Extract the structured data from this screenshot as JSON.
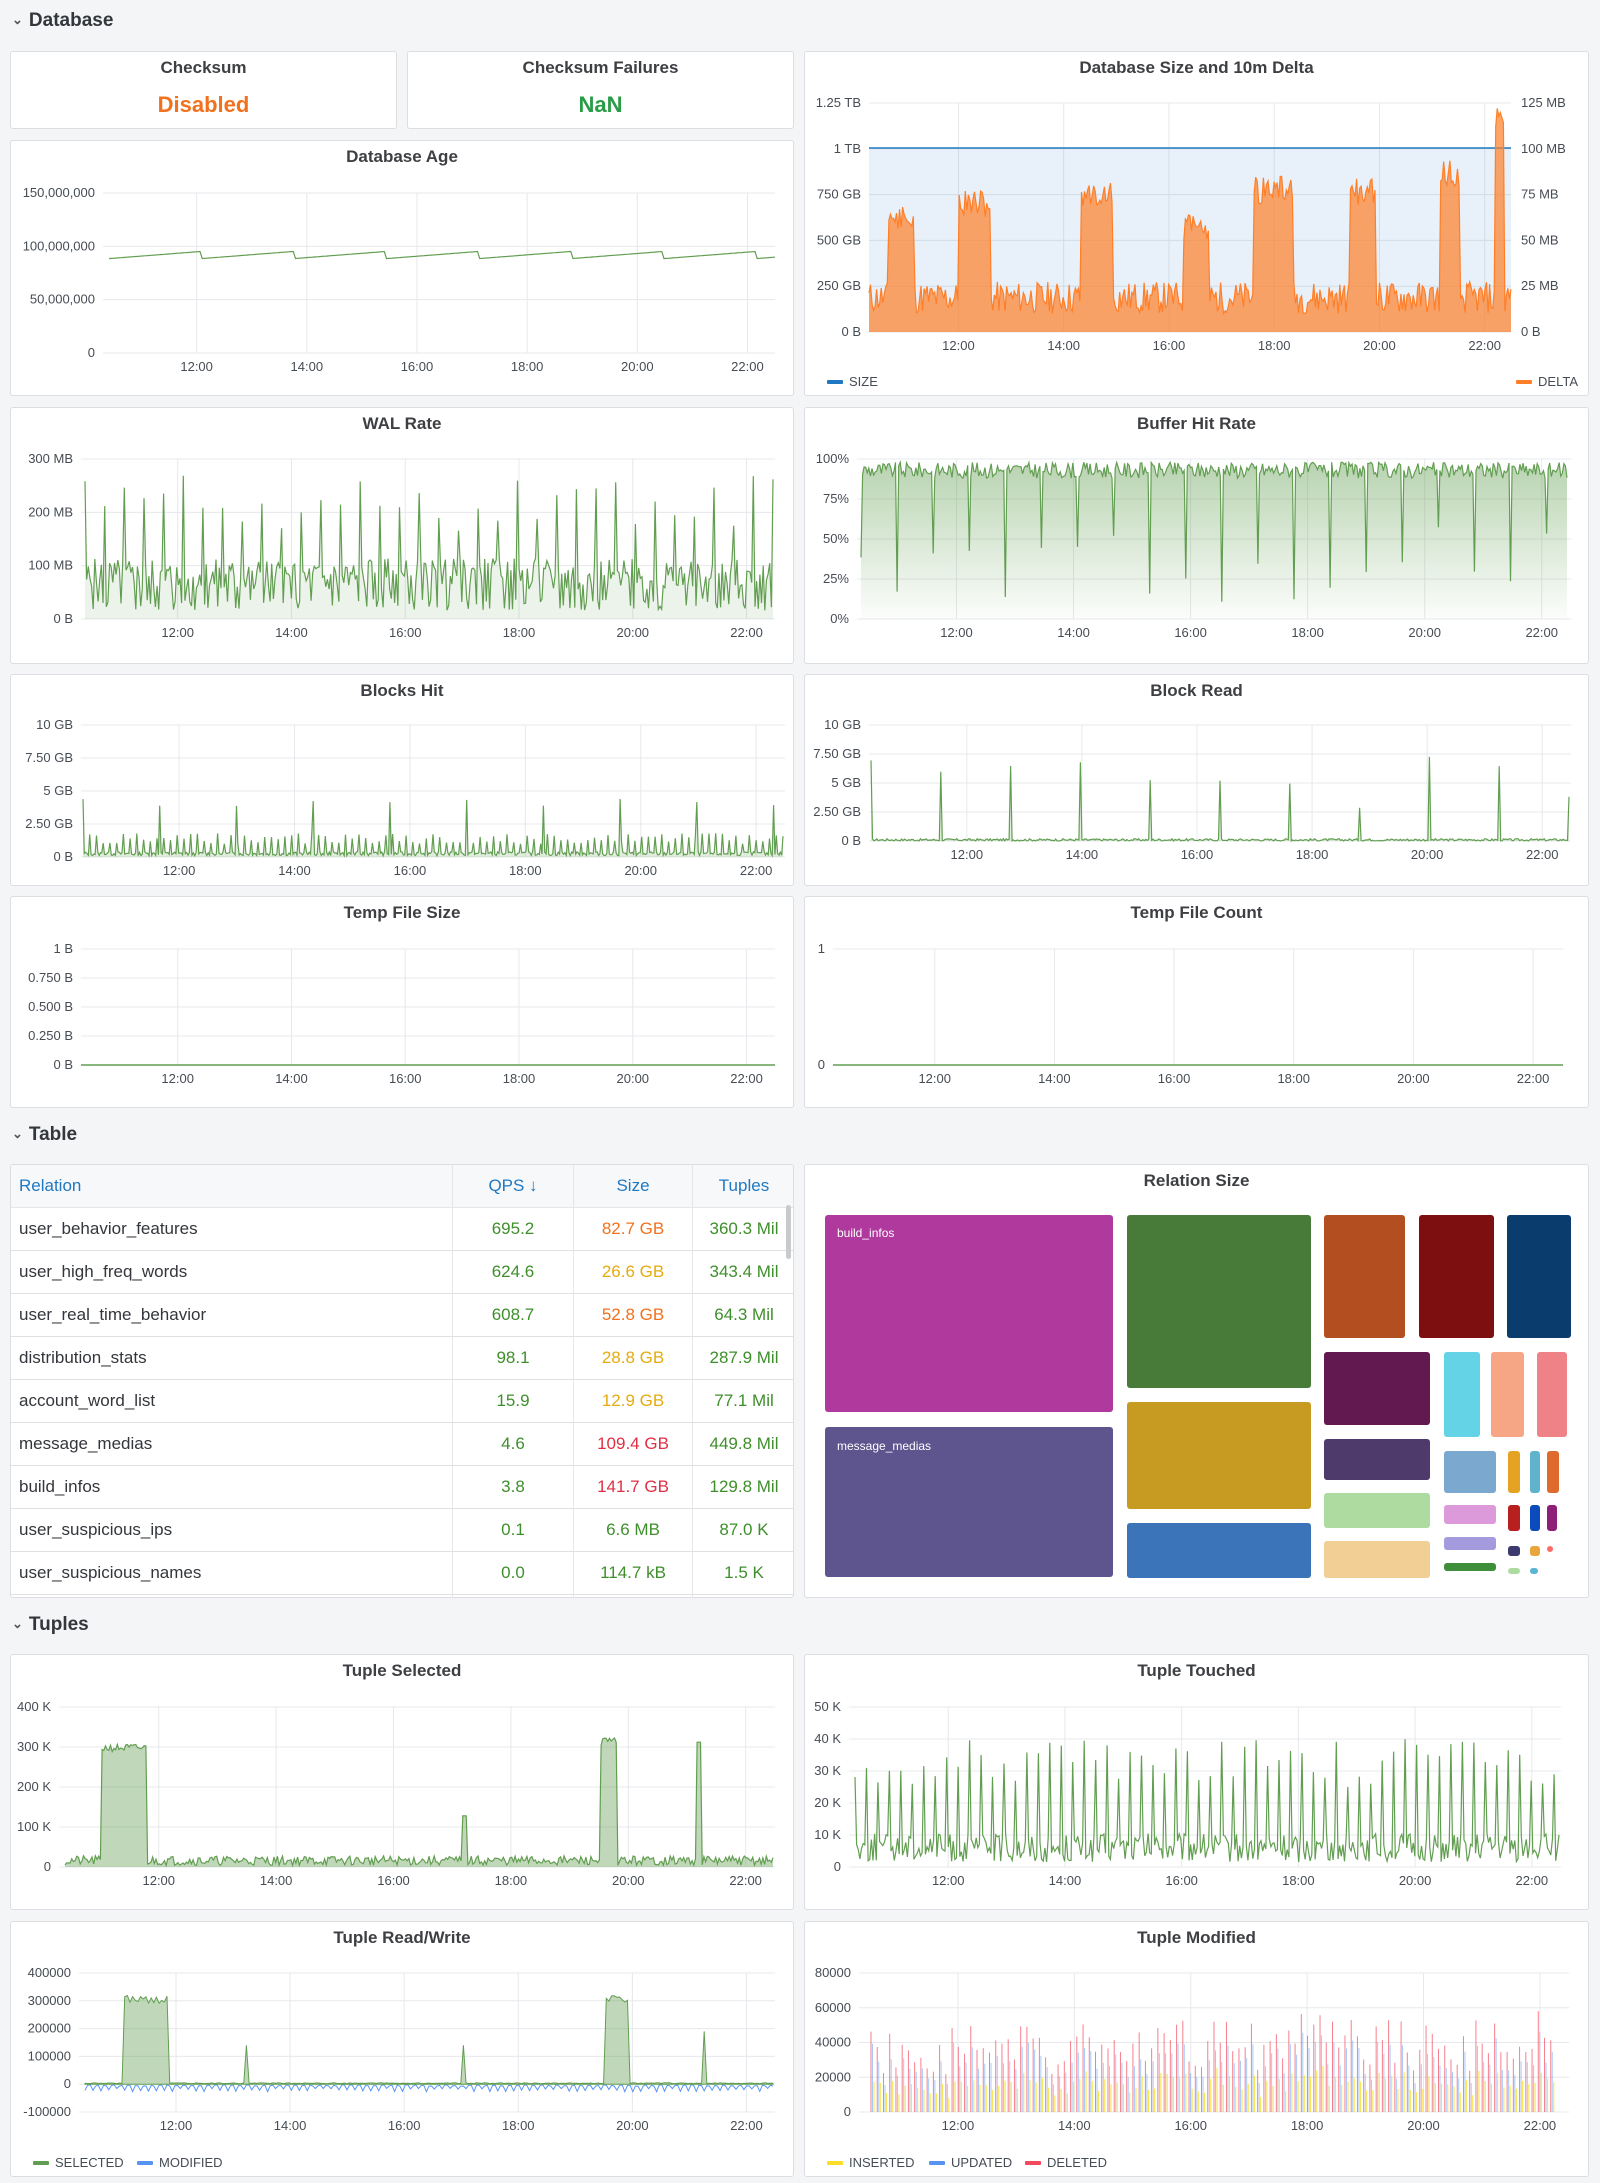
{
  "rows": {
    "database": "Database",
    "table": "Table",
    "tuples": "Tuples"
  },
  "checksum": {
    "title": "Checksum",
    "value": "Disabled",
    "color": "#f2711c"
  },
  "checksum_failures": {
    "title": "Checksum Failures",
    "value": "NaN",
    "color": "#299c46"
  },
  "colors": {
    "green": "#629e51",
    "greenFill": "rgba(98,158,81,0.35)",
    "orange": "#ff7f28",
    "blue": "#1f78c1",
    "lightblue": "#5794f2",
    "yellow": "#fade2a",
    "red": "#f2495c",
    "grid": "#e6e8eb",
    "axis": "#464c54",
    "good": "#3e8f2b",
    "warn": "#e5ac0e",
    "bad": "#e02f44",
    "orangeVal": "#f2711c"
  },
  "xticks": [
    "12:00",
    "14:00",
    "16:00",
    "18:00",
    "20:00",
    "22:00"
  ],
  "charts": {
    "db_age": {
      "title": "Database Age",
      "yticks": [
        "150,000,000",
        "100,000,000",
        "50,000,000",
        "0"
      ],
      "ylim": [
        0,
        150000000
      ]
    },
    "db_size": {
      "title": "Database Size and 10m Delta",
      "yticks_left": [
        "1.25 TB",
        "1 TB",
        "750 GB",
        "500 GB",
        "250 GB",
        "0 B"
      ],
      "yticks_right": [
        "125 MB",
        "100 MB",
        "75 MB",
        "50 MB",
        "25 MB",
        "0 B"
      ],
      "legend": [
        "SIZE",
        "DELTA"
      ]
    },
    "wal": {
      "title": "WAL Rate",
      "yticks": [
        "300 MB",
        "200 MB",
        "100 MB",
        "0 B"
      ]
    },
    "buffer": {
      "title": "Buffer Hit Rate",
      "yticks": [
        "100%",
        "75%",
        "50%",
        "25%",
        "0%"
      ]
    },
    "blocks_hit": {
      "title": "Blocks Hit",
      "yticks": [
        "10 GB",
        "7.50 GB",
        "5 GB",
        "2.50 GB",
        "0 B"
      ]
    },
    "block_read": {
      "title": "Block Read",
      "yticks": [
        "10 GB",
        "7.50 GB",
        "5 GB",
        "2.50 GB",
        "0 B"
      ]
    },
    "temp_size": {
      "title": "Temp File Size",
      "yticks": [
        "1 B",
        "0.750 B",
        "0.500 B",
        "0.250 B",
        "0 B"
      ]
    },
    "temp_count": {
      "title": "Temp File Count",
      "yticks": [
        "1",
        "0"
      ]
    },
    "tuple_selected": {
      "title": "Tuple Selected",
      "yticks": [
        "400 K",
        "300 K",
        "200 K",
        "100 K",
        "0"
      ]
    },
    "tuple_touched": {
      "title": "Tuple Touched",
      "yticks": [
        "50 K",
        "40 K",
        "30 K",
        "20 K",
        "10 K",
        "0"
      ]
    },
    "tuple_rw": {
      "title": "Tuple Read/Write",
      "yticks": [
        "400000",
        "300000",
        "200000",
        "100000",
        "0",
        "-100000"
      ],
      "legend": [
        "SELECTED",
        "MODIFIED"
      ]
    },
    "tuple_mod": {
      "title": "Tuple Modified",
      "yticks": [
        "80000",
        "60000",
        "40000",
        "20000",
        "0"
      ],
      "legend": [
        "INSERTED",
        "UPDATED",
        "DELETED"
      ]
    }
  },
  "table": {
    "headers": [
      "Relation",
      "QPS ↓",
      "Size",
      "Tuples"
    ],
    "rows": [
      {
        "relation": "user_behavior_features",
        "qps": "695.2",
        "size": "82.7 GB",
        "size_level": "warn2",
        "tuples": "360.3 Mil"
      },
      {
        "relation": "user_high_freq_words",
        "qps": "624.6",
        "size": "26.6 GB",
        "size_level": "warn",
        "tuples": "343.4 Mil"
      },
      {
        "relation": "user_real_time_behavior",
        "qps": "608.7",
        "size": "52.8 GB",
        "size_level": "warn2",
        "tuples": "64.3 Mil"
      },
      {
        "relation": "distribution_stats",
        "qps": "98.1",
        "size": "28.8 GB",
        "size_level": "warn",
        "tuples": "287.9 Mil"
      },
      {
        "relation": "account_word_list",
        "qps": "15.9",
        "size": "12.9 GB",
        "size_level": "warn",
        "tuples": "77.1 Mil"
      },
      {
        "relation": "message_medias",
        "qps": "4.6",
        "size": "109.4 GB",
        "size_level": "bad",
        "tuples": "449.8 Mil"
      },
      {
        "relation": "build_infos",
        "qps": "3.8",
        "size": "141.7 GB",
        "size_level": "bad",
        "tuples": "129.8 Mil"
      },
      {
        "relation": "user_suspicious_ips",
        "qps": "0.1",
        "size": "6.6 MB",
        "size_level": "good",
        "tuples": "87.0 K"
      },
      {
        "relation": "user_suspicious_names",
        "qps": "0.0",
        "size": "114.7 kB",
        "size_level": "good",
        "tuples": "1.5 K"
      }
    ]
  },
  "treemap": {
    "title": "Relation Size",
    "labels": [
      "build_infos",
      "message_medias"
    ]
  }
}
